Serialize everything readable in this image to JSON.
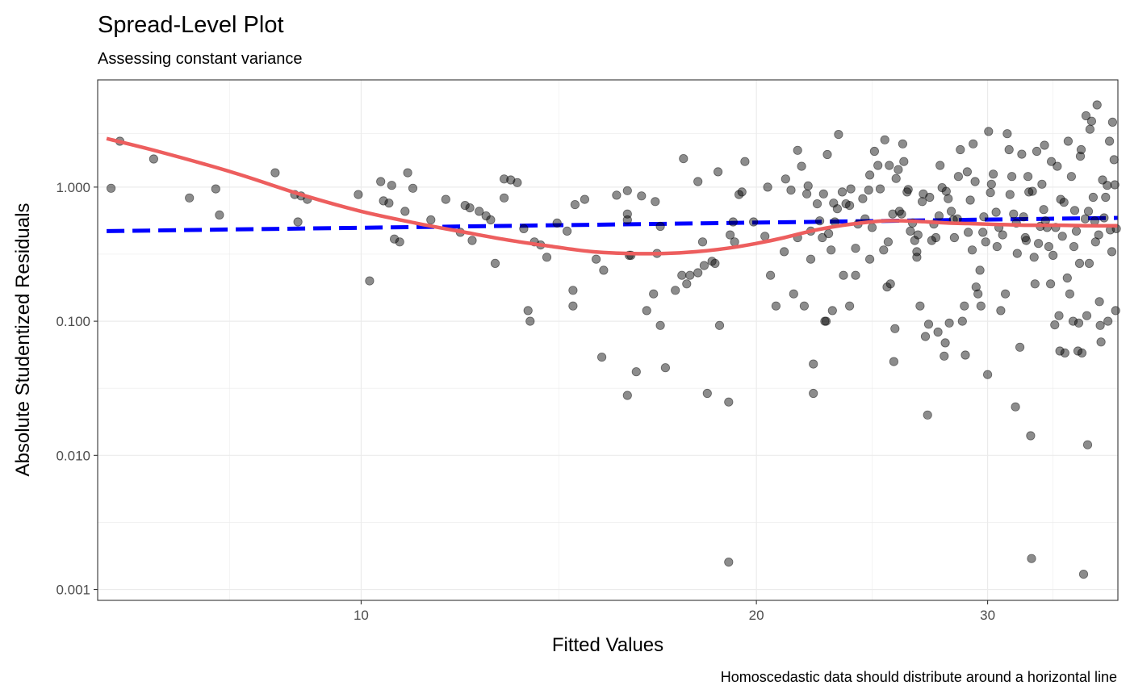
{
  "chart_data": {
    "type": "scatter",
    "title": "Spread-Level Plot",
    "subtitle": "Assessing constant variance",
    "xlabel": "Fitted Values",
    "ylabel": "Absolute Studentized Residuals",
    "caption": "Homoscedastic data should distribute around a horizontal line",
    "x_scale": "log10",
    "y_scale": "log10",
    "xlim": [
      6.3,
      37.7
    ],
    "ylim": [
      0.00083,
      6.3
    ],
    "x_ticks": [
      10,
      20,
      30
    ],
    "x_tick_labels": [
      "10",
      "20",
      "30"
    ],
    "y_ticks": [
      0.001,
      0.01,
      0.1,
      1
    ],
    "y_tick_labels": [
      "0.001",
      "0.010",
      "0.100",
      "1.000"
    ],
    "grid": true,
    "colors": {
      "points": "#000000",
      "smooth": "#ED5E5E",
      "fit": "#0000FF",
      "panel_border": "#333333",
      "grid": "#EBEBEB"
    },
    "points": [
      [
        6.45,
        0.98
      ],
      [
        6.55,
        2.2
      ],
      [
        6.95,
        1.62
      ],
      [
        7.4,
        0.83
      ],
      [
        7.75,
        0.97
      ],
      [
        7.8,
        0.62
      ],
      [
        8.6,
        1.28
      ],
      [
        8.9,
        0.88
      ],
      [
        8.95,
        0.55
      ],
      [
        9.0,
        0.86
      ],
      [
        9.1,
        0.81
      ],
      [
        9.95,
        0.88
      ],
      [
        10.15,
        0.2
      ],
      [
        10.35,
        1.1
      ],
      [
        10.4,
        0.79
      ],
      [
        10.5,
        0.76
      ],
      [
        10.55,
        1.03
      ],
      [
        10.6,
        0.41
      ],
      [
        10.7,
        0.39
      ],
      [
        10.8,
        0.66
      ],
      [
        10.85,
        1.28
      ],
      [
        10.95,
        0.98
      ],
      [
        11.3,
        0.57
      ],
      [
        11.6,
        0.81
      ],
      [
        11.9,
        0.46
      ],
      [
        12.0,
        0.73
      ],
      [
        12.1,
        0.7
      ],
      [
        12.15,
        0.4
      ],
      [
        12.3,
        0.66
      ],
      [
        12.45,
        0.61
      ],
      [
        12.55,
        0.57
      ],
      [
        12.65,
        0.27
      ],
      [
        12.85,
        1.15
      ],
      [
        12.85,
        0.83
      ],
      [
        13.0,
        1.13
      ],
      [
        13.15,
        1.08
      ],
      [
        13.3,
        0.49
      ],
      [
        13.4,
        0.12
      ],
      [
        13.45,
        0.1
      ],
      [
        13.55,
        0.39
      ],
      [
        13.7,
        0.37
      ],
      [
        13.85,
        0.3
      ],
      [
        14.1,
        0.54
      ],
      [
        14.35,
        0.47
      ],
      [
        14.5,
        0.17
      ],
      [
        14.5,
        0.13
      ],
      [
        14.55,
        0.74
      ],
      [
        14.8,
        0.81
      ],
      [
        15.1,
        0.29
      ],
      [
        15.25,
        0.054
      ],
      [
        15.3,
        0.24
      ],
      [
        15.65,
        0.87
      ],
      [
        15.95,
        0.94
      ],
      [
        15.95,
        0.63
      ],
      [
        15.95,
        0.57
      ],
      [
        15.95,
        0.028
      ],
      [
        16.0,
        0.31
      ],
      [
        16.05,
        0.31
      ],
      [
        16.2,
        0.042
      ],
      [
        16.35,
        0.86
      ],
      [
        16.5,
        0.12
      ],
      [
        16.7,
        0.16
      ],
      [
        16.75,
        0.78
      ],
      [
        16.8,
        0.32
      ],
      [
        16.9,
        0.51
      ],
      [
        16.9,
        0.093
      ],
      [
        17.05,
        0.045
      ],
      [
        17.35,
        0.17
      ],
      [
        17.55,
        0.22
      ],
      [
        17.6,
        1.63
      ],
      [
        17.7,
        0.19
      ],
      [
        17.8,
        0.22
      ],
      [
        18.05,
        1.1
      ],
      [
        18.05,
        0.23
      ],
      [
        18.2,
        0.39
      ],
      [
        18.25,
        0.26
      ],
      [
        18.35,
        0.029
      ],
      [
        18.5,
        0.28
      ],
      [
        18.6,
        0.27
      ],
      [
        18.7,
        1.3
      ],
      [
        18.75,
        0.093
      ],
      [
        19.05,
        0.0016
      ],
      [
        19.05,
        0.025
      ],
      [
        19.1,
        0.44
      ],
      [
        19.2,
        0.55
      ],
      [
        19.25,
        0.39
      ],
      [
        19.4,
        0.88
      ],
      [
        19.5,
        0.92
      ],
      [
        19.6,
        1.55
      ],
      [
        19.9,
        0.55
      ],
      [
        20.3,
        0.43
      ],
      [
        20.4,
        1.0
      ],
      [
        20.5,
        0.22
      ],
      [
        20.7,
        0.13
      ],
      [
        21.0,
        0.33
      ],
      [
        21.05,
        1.15
      ],
      [
        21.25,
        0.95
      ],
      [
        21.35,
        0.16
      ],
      [
        21.5,
        0.42
      ],
      [
        21.5,
        1.88
      ],
      [
        21.65,
        1.43
      ],
      [
        21.75,
        0.13
      ],
      [
        21.85,
        0.89
      ],
      [
        21.9,
        1.02
      ],
      [
        22.0,
        0.29
      ],
      [
        22.0,
        0.47
      ],
      [
        22.1,
        0.048
      ],
      [
        22.1,
        0.029
      ],
      [
        22.25,
        0.75
      ],
      [
        22.35,
        0.56
      ],
      [
        22.45,
        0.42
      ],
      [
        22.5,
        0.89
      ],
      [
        22.55,
        0.1
      ],
      [
        22.6,
        0.1
      ],
      [
        22.65,
        1.75
      ],
      [
        22.7,
        0.45
      ],
      [
        22.8,
        0.34
      ],
      [
        22.85,
        0.12
      ],
      [
        22.9,
        0.76
      ],
      [
        22.95,
        0.55
      ],
      [
        23.05,
        0.69
      ],
      [
        23.1,
        2.47
      ],
      [
        23.25,
        0.92
      ],
      [
        23.3,
        0.22
      ],
      [
        23.4,
        0.75
      ],
      [
        23.55,
        0.13
      ],
      [
        23.55,
        0.73
      ],
      [
        23.6,
        0.97
      ],
      [
        23.8,
        0.35
      ],
      [
        23.8,
        0.22
      ],
      [
        23.9,
        0.53
      ],
      [
        24.1,
        0.82
      ],
      [
        24.2,
        0.58
      ],
      [
        24.35,
        0.95
      ],
      [
        24.4,
        1.23
      ],
      [
        24.4,
        0.29
      ],
      [
        24.5,
        0.5
      ],
      [
        24.6,
        1.85
      ],
      [
        24.75,
        1.45
      ],
      [
        24.85,
        0.97
      ],
      [
        25.0,
        0.34
      ],
      [
        25.05,
        2.25
      ],
      [
        25.15,
        0.18
      ],
      [
        25.2,
        0.39
      ],
      [
        25.25,
        1.45
      ],
      [
        25.3,
        0.19
      ],
      [
        25.4,
        0.63
      ],
      [
        25.45,
        0.05
      ],
      [
        25.5,
        0.088
      ],
      [
        25.55,
        1.16
      ],
      [
        25.65,
        1.35
      ],
      [
        25.7,
        0.66
      ],
      [
        25.8,
        0.63
      ],
      [
        25.85,
        2.1
      ],
      [
        25.9,
        1.55
      ],
      [
        26.05,
        0.92
      ],
      [
        26.1,
        0.96
      ],
      [
        26.2,
        0.47
      ],
      [
        26.3,
        0.54
      ],
      [
        26.4,
        0.4
      ],
      [
        26.5,
        0.33
      ],
      [
        26.5,
        0.3
      ],
      [
        26.55,
        0.44
      ],
      [
        26.65,
        0.13
      ],
      [
        26.75,
        0.78
      ],
      [
        26.8,
        0.89
      ],
      [
        26.9,
        0.077
      ],
      [
        27.0,
        0.02
      ],
      [
        27.05,
        0.095
      ],
      [
        27.1,
        0.84
      ],
      [
        27.2,
        0.4
      ],
      [
        27.3,
        0.53
      ],
      [
        27.4,
        0.42
      ],
      [
        27.5,
        0.083
      ],
      [
        27.55,
        0.61
      ],
      [
        27.6,
        1.45
      ],
      [
        27.7,
        0.99
      ],
      [
        27.8,
        0.055
      ],
      [
        27.85,
        0.069
      ],
      [
        27.9,
        0.93
      ],
      [
        28.0,
        0.82
      ],
      [
        28.05,
        0.097
      ],
      [
        28.15,
        0.66
      ],
      [
        28.25,
        0.57
      ],
      [
        28.3,
        0.42
      ],
      [
        28.45,
        0.58
      ],
      [
        28.5,
        1.2
      ],
      [
        28.6,
        1.9
      ],
      [
        28.7,
        0.1
      ],
      [
        28.8,
        0.13
      ],
      [
        28.85,
        0.056
      ],
      [
        28.95,
        1.3
      ],
      [
        29.0,
        0.46
      ],
      [
        29.1,
        0.8
      ],
      [
        29.2,
        0.34
      ],
      [
        29.25,
        2.1
      ],
      [
        29.35,
        1.1
      ],
      [
        29.4,
        0.18
      ],
      [
        29.5,
        0.16
      ],
      [
        29.6,
        0.24
      ],
      [
        29.65,
        0.13
      ],
      [
        29.75,
        0.46
      ],
      [
        29.8,
        0.6
      ],
      [
        29.9,
        0.39
      ],
      [
        30.0,
        0.04
      ],
      [
        30.05,
        2.6
      ],
      [
        30.15,
        0.91
      ],
      [
        30.2,
        1.05
      ],
      [
        30.3,
        1.25
      ],
      [
        30.45,
        0.65
      ],
      [
        30.5,
        0.36
      ],
      [
        30.6,
        0.5
      ],
      [
        30.7,
        0.12
      ],
      [
        30.8,
        0.44
      ],
      [
        30.95,
        0.16
      ],
      [
        31.05,
        2.5
      ],
      [
        31.15,
        1.9
      ],
      [
        31.2,
        0.88
      ],
      [
        31.3,
        1.2
      ],
      [
        31.4,
        0.63
      ],
      [
        31.5,
        0.023
      ],
      [
        31.55,
        0.54
      ],
      [
        31.6,
        0.32
      ],
      [
        31.75,
        0.064
      ],
      [
        31.85,
        1.76
      ],
      [
        31.95,
        0.6
      ],
      [
        32.05,
        0.42
      ],
      [
        32.1,
        0.4
      ],
      [
        32.2,
        1.2
      ],
      [
        32.25,
        0.92
      ],
      [
        32.35,
        0.014
      ],
      [
        32.4,
        0.0017
      ],
      [
        32.45,
        0.93
      ],
      [
        32.55,
        0.3
      ],
      [
        32.6,
        0.19
      ],
      [
        32.7,
        1.85
      ],
      [
        32.8,
        0.38
      ],
      [
        32.9,
        0.51
      ],
      [
        33.0,
        1.05
      ],
      [
        33.1,
        0.68
      ],
      [
        33.15,
        2.05
      ],
      [
        33.2,
        0.56
      ],
      [
        33.3,
        0.5
      ],
      [
        33.4,
        0.36
      ],
      [
        33.5,
        0.19
      ],
      [
        33.55,
        1.55
      ],
      [
        33.65,
        0.31
      ],
      [
        33.75,
        0.094
      ],
      [
        33.8,
        0.5
      ],
      [
        33.9,
        1.43
      ],
      [
        34.0,
        0.11
      ],
      [
        34.05,
        0.06
      ],
      [
        34.1,
        0.81
      ],
      [
        34.2,
        0.43
      ],
      [
        34.3,
        0.77
      ],
      [
        34.35,
        0.058
      ],
      [
        34.5,
        0.21
      ],
      [
        34.55,
        2.2
      ],
      [
        34.65,
        0.16
      ],
      [
        34.75,
        1.2
      ],
      [
        34.85,
        0.1
      ],
      [
        34.9,
        0.36
      ],
      [
        34.95,
        0.67
      ],
      [
        35.05,
        0.47
      ],
      [
        35.15,
        0.06
      ],
      [
        35.2,
        0.097
      ],
      [
        35.25,
        0.27
      ],
      [
        35.3,
        1.7
      ],
      [
        35.35,
        1.9
      ],
      [
        35.4,
        0.058
      ],
      [
        35.5,
        0.0013
      ],
      [
        35.6,
        0.58
      ],
      [
        35.65,
        3.4
      ],
      [
        35.7,
        0.11
      ],
      [
        35.75,
        0.012
      ],
      [
        35.8,
        0.66
      ],
      [
        35.85,
        0.27
      ],
      [
        35.9,
        2.7
      ],
      [
        36.0,
        3.1
      ],
      [
        36.1,
        0.84
      ],
      [
        36.2,
        0.56
      ],
      [
        36.25,
        0.39
      ],
      [
        36.35,
        4.1
      ],
      [
        36.45,
        0.44
      ],
      [
        36.5,
        0.14
      ],
      [
        36.55,
        0.093
      ],
      [
        36.6,
        0.07
      ],
      [
        36.7,
        1.13
      ],
      [
        36.8,
        0.59
      ],
      [
        36.9,
        0.84
      ],
      [
        37.0,
        1.03
      ],
      [
        37.05,
        0.1
      ],
      [
        37.15,
        2.2
      ],
      [
        37.2,
        0.48
      ],
      [
        37.3,
        0.33
      ],
      [
        37.35,
        3.05
      ],
      [
        37.45,
        1.6
      ],
      [
        37.5,
        1.04
      ],
      [
        37.55,
        0.12
      ],
      [
        37.6,
        0.49
      ]
    ],
    "series": [
      {
        "kind": "loess",
        "style": "solid",
        "x": [
          6.4,
          7.0,
          8.0,
          9.0,
          10.0,
          11.0,
          12.0,
          13.0,
          14.0,
          15.0,
          16.0,
          17.0,
          18.0,
          19.0,
          20.0,
          21.0,
          22.0,
          23.0,
          24.0,
          25.0,
          26.0,
          27.0,
          28.0,
          29.0,
          30.0,
          32.0,
          34.0,
          36.0,
          37.7
        ],
        "y": [
          2.3,
          1.85,
          1.28,
          0.88,
          0.66,
          0.54,
          0.46,
          0.4,
          0.36,
          0.33,
          0.32,
          0.32,
          0.33,
          0.35,
          0.38,
          0.42,
          0.47,
          0.51,
          0.54,
          0.56,
          0.56,
          0.55,
          0.54,
          0.535,
          0.53,
          0.52,
          0.52,
          0.515,
          0.515
        ]
      },
      {
        "kind": "linear fit",
        "style": "dashed",
        "x": [
          6.4,
          37.7
        ],
        "y": [
          0.47,
          0.59
        ]
      }
    ]
  }
}
